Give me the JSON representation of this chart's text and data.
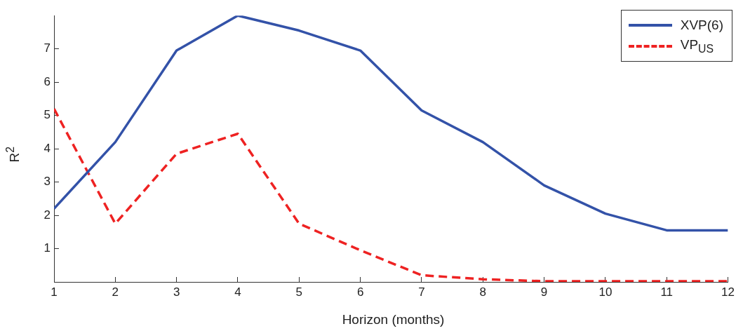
{
  "chart_data": {
    "type": "line",
    "xlabel": "Horizon (months)",
    "ylabel": "R$^{2}$",
    "x": [
      1,
      2,
      3,
      4,
      5,
      6,
      7,
      8,
      9,
      10,
      11,
      12
    ],
    "series": [
      {
        "name": "XVP(6)",
        "color": "#3352a8",
        "line_style": "solid",
        "values": [
          2.2,
          4.2,
          6.95,
          8.0,
          7.55,
          6.95,
          5.15,
          4.2,
          2.9,
          2.05,
          1.55,
          1.55
        ]
      },
      {
        "name": "VP$_{US}$",
        "color": "#ee2222",
        "line_style": "dashed",
        "values": [
          5.2,
          1.75,
          3.85,
          4.45,
          1.75,
          0.95,
          0.2,
          0.08,
          0.02,
          0.02,
          0.02,
          0.02
        ]
      }
    ],
    "xlim": [
      1,
      12
    ],
    "xticks": [
      1,
      2,
      3,
      4,
      5,
      6,
      7,
      8,
      9,
      10,
      11,
      12
    ],
    "ylim": [
      0,
      8
    ],
    "yticks": [
      1,
      2,
      3,
      4,
      5,
      6,
      7
    ],
    "grid": false,
    "legend": "top right",
    "marker": "none"
  }
}
